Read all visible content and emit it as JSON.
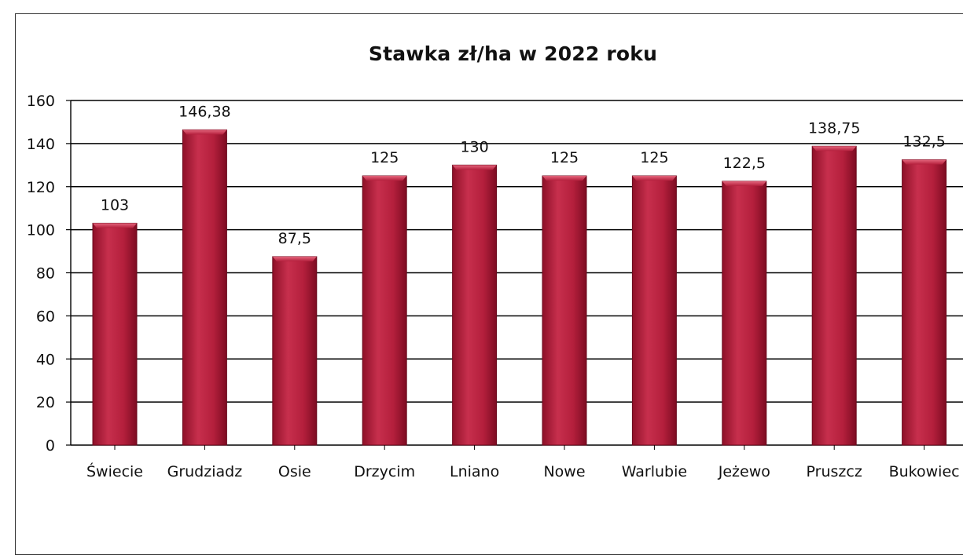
{
  "chart_data": {
    "type": "bar",
    "title": "Stawka zł/ha w 2022 roku",
    "xlabel": "",
    "ylabel": "",
    "ylim": [
      0,
      160
    ],
    "yticks": [
      0,
      20,
      40,
      60,
      80,
      100,
      120,
      140,
      160
    ],
    "categories": [
      "Świecie",
      "Grudziadz",
      "Osie",
      "Drzycim",
      "Lniano",
      "Nowe",
      "Warlubie",
      "Jeżewo",
      "Pruszcz",
      "Bukowiec"
    ],
    "values": [
      103,
      146.38,
      87.5,
      125,
      130,
      125,
      125,
      122.5,
      138.75,
      132.5
    ],
    "data_labels": [
      "103",
      "146,38",
      "87,5",
      "125",
      "130",
      "125",
      "125",
      "122,5",
      "138,75",
      "132,5"
    ],
    "bar_color": "#b41f3c",
    "grid": true,
    "legend": "none"
  }
}
